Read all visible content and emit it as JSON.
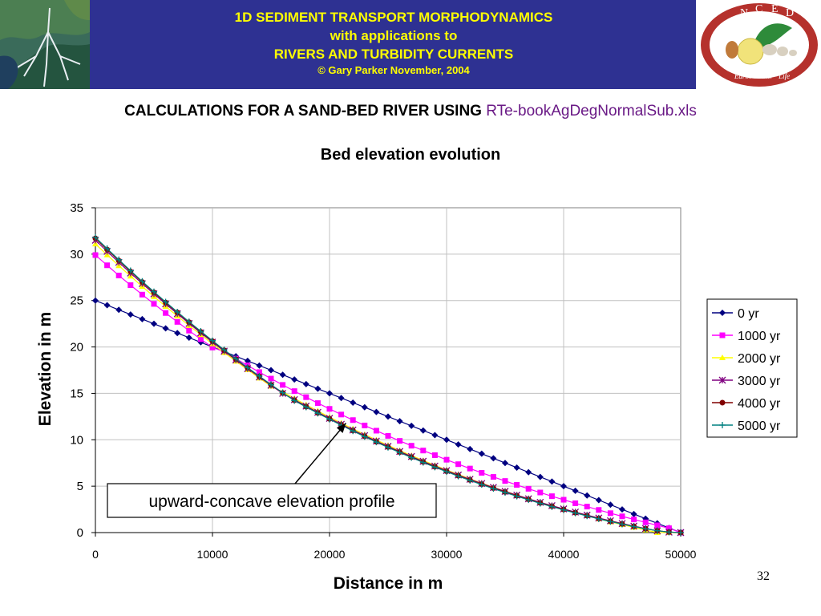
{
  "header": {
    "line1": "1D SEDIMENT TRANSPORT MORPHODYNAMICS",
    "line2": "with applications to",
    "line3": "RIVERS AND TURBIDITY CURRENTS",
    "copyright": "© Gary Parker November, 2004",
    "logo_letters": [
      "N",
      "C",
      "E",
      "D"
    ],
    "logo_motto": "Earth · Water · Life",
    "colors": {
      "banner": "#2e3192",
      "text": "#ffff00"
    }
  },
  "subtitle": {
    "text": "CALCULATIONS FOR A SAND-BED RIVER USING ",
    "filename": "RTe-bookAgDegNormalSub.xls"
  },
  "slide_number": "32",
  "chart_data": {
    "type": "line",
    "title": "Bed elevation evolution",
    "xlabel": "Distance in m",
    "ylabel": "Elevation in m",
    "xlim": [
      0,
      50000
    ],
    "ylim": [
      0,
      35
    ],
    "xticks": [
      0,
      10000,
      20000,
      30000,
      40000,
      50000
    ],
    "yticks": [
      0,
      5,
      10,
      15,
      20,
      25,
      30,
      35
    ],
    "grid": true,
    "legend_position": "right",
    "x": [
      0,
      1000,
      2000,
      3000,
      4000,
      5000,
      6000,
      7000,
      8000,
      9000,
      10000,
      11000,
      12000,
      13000,
      14000,
      15000,
      16000,
      17000,
      18000,
      19000,
      20000,
      21000,
      22000,
      23000,
      24000,
      25000,
      26000,
      27000,
      28000,
      29000,
      30000,
      31000,
      32000,
      33000,
      34000,
      35000,
      36000,
      37000,
      38000,
      39000,
      40000,
      41000,
      42000,
      43000,
      44000,
      45000,
      46000,
      47000,
      48000,
      49000,
      50000
    ],
    "series": [
      {
        "name": "0 yr",
        "color": "#000080",
        "marker": "diamond",
        "values": [
          25,
          24.5,
          24,
          23.5,
          23,
          22.5,
          22,
          21.5,
          21,
          20.5,
          20,
          19.5,
          19,
          18.5,
          18,
          17.5,
          17,
          16.5,
          16,
          15.5,
          15,
          14.5,
          14,
          13.5,
          13,
          12.5,
          12,
          11.5,
          11,
          10.5,
          10,
          9.5,
          9,
          8.5,
          8,
          7.5,
          7,
          6.5,
          6,
          5.5,
          5,
          4.5,
          4,
          3.5,
          3,
          2.5,
          2,
          1.5,
          1,
          0.5,
          0
        ]
      },
      {
        "name": "1000 yr",
        "color": "#ff00ff",
        "marker": "square",
        "values": [
          29.9,
          28.8,
          27.7,
          26.66,
          25.64,
          24.64,
          23.66,
          22.7,
          21.76,
          20.84,
          19.94,
          19.49,
          18.74,
          18.01,
          17.29,
          16.59,
          15.91,
          15.24,
          14.59,
          13.95,
          13.33,
          12.72,
          12.12,
          11.54,
          10.98,
          10.42,
          9.88,
          9.36,
          8.84,
          8.34,
          7.85,
          7.37,
          6.9,
          6.44,
          6.0,
          5.56,
          5.14,
          4.72,
          4.32,
          3.92,
          3.54,
          3.16,
          2.8,
          2.44,
          2.09,
          1.75,
          1.42,
          1.1,
          0.78,
          0.47,
          0.0
        ]
      },
      {
        "name": "2000 yr",
        "color": "#ffff00",
        "marker": "triangle",
        "values": [
          31.1,
          29.92,
          28.76,
          27.63,
          26.52,
          25.43,
          24.37,
          23.33,
          22.31,
          21.32,
          20.34,
          19.39,
          18.46,
          17.55,
          16.65,
          15.77,
          15.15,
          14.45,
          13.77,
          13.1,
          12.44,
          11.8,
          11.18,
          10.57,
          9.98,
          9.4,
          8.84,
          8.3,
          7.77,
          7.25,
          6.75,
          6.27,
          5.79,
          5.33,
          4.89,
          4.46,
          4.04,
          3.63,
          3.24,
          2.86,
          2.5,
          2.15,
          1.81,
          1.48,
          1.16,
          0.86,
          0.56,
          0.28,
          0.0,
          0.0,
          0.0
        ]
      },
      {
        "name": "3000 yr",
        "color": "#800080",
        "marker": "x",
        "values": [
          31.5,
          30.3,
          29.12,
          27.96,
          26.83,
          25.72,
          24.64,
          23.58,
          22.54,
          21.52,
          20.52,
          19.55,
          18.6,
          17.67,
          16.76,
          15.87,
          15.0,
          14.32,
          13.63,
          12.96,
          12.31,
          11.67,
          11.05,
          10.45,
          9.86,
          9.29,
          8.74,
          8.2,
          7.68,
          7.17,
          6.68,
          6.2,
          5.74,
          5.29,
          4.86,
          4.44,
          4.03,
          3.64,
          3.26,
          2.9,
          2.55,
          2.21,
          1.88,
          1.57,
          1.27,
          0.98,
          0.7,
          0.44,
          0.19,
          0.05,
          0.0
        ]
      },
      {
        "name": "4000 yr",
        "color": "#800000",
        "marker": "circle",
        "values": [
          31.7,
          30.5,
          29.3,
          28.13,
          26.99,
          25.87,
          24.78,
          23.71,
          22.66,
          21.63,
          20.62,
          19.64,
          18.68,
          17.74,
          16.82,
          15.92,
          15.04,
          14.26,
          13.57,
          12.9,
          12.25,
          11.61,
          10.99,
          10.38,
          9.79,
          9.22,
          8.67,
          8.13,
          7.61,
          7.1,
          6.61,
          6.13,
          5.67,
          5.22,
          4.79,
          4.37,
          3.97,
          3.58,
          3.2,
          2.84,
          2.49,
          2.15,
          1.83,
          1.52,
          1.22,
          0.94,
          0.67,
          0.42,
          0.2,
          0.06,
          0.0
        ]
      },
      {
        "name": "5000 yr",
        "color": "#008080",
        "marker": "plus",
        "values": [
          31.8,
          30.6,
          29.4,
          28.22,
          27.07,
          25.95,
          24.85,
          23.77,
          22.72,
          21.69,
          20.68,
          19.69,
          18.73,
          17.78,
          16.86,
          15.95,
          15.07,
          14.22,
          13.53,
          12.86,
          12.21,
          11.57,
          10.95,
          10.34,
          9.75,
          9.18,
          8.62,
          8.08,
          7.56,
          7.05,
          6.56,
          6.08,
          5.62,
          5.17,
          4.74,
          4.32,
          3.92,
          3.53,
          3.15,
          2.79,
          2.44,
          2.11,
          1.79,
          1.48,
          1.19,
          0.91,
          0.65,
          0.41,
          0.2,
          0.06,
          0.0
        ]
      }
    ],
    "annotations": [
      {
        "text": "upward-concave elevation profile",
        "arrow_to": {
          "x": 21400,
          "y": 11.8
        }
      }
    ]
  }
}
